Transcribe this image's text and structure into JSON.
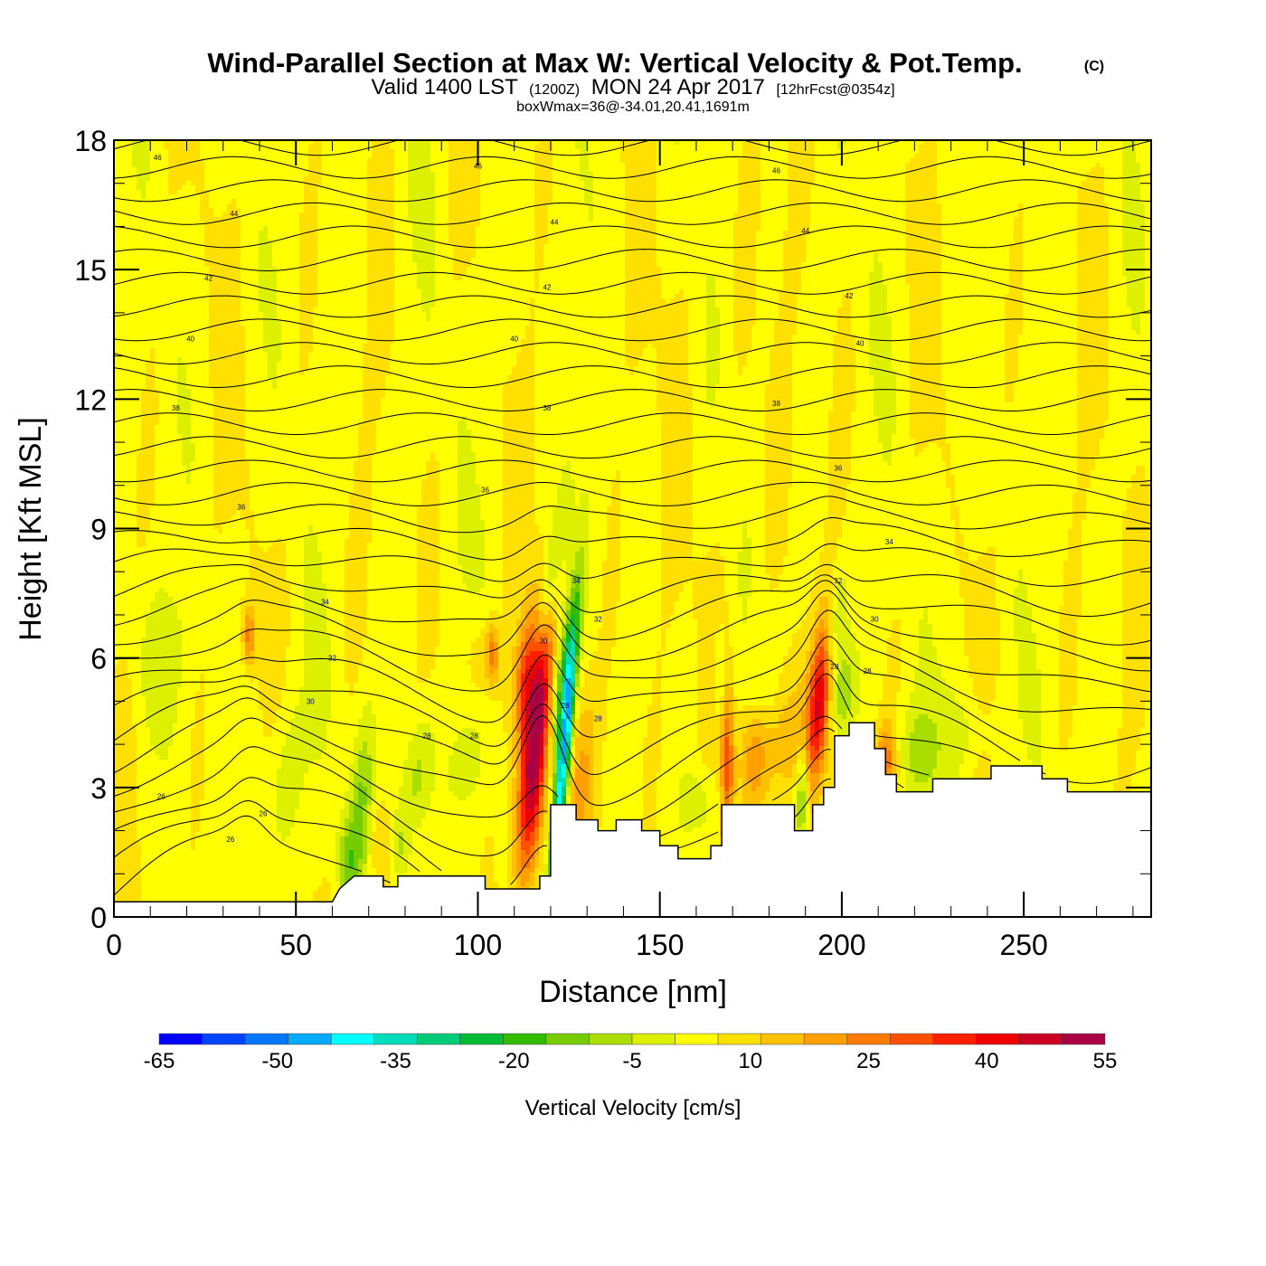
{
  "header": {
    "title": "Wind-Parallel Section at Max W: Vertical Velocity & Pot.Temp.",
    "copyright": "(C)",
    "valid_prefix": "Valid 1400 LST",
    "valid_z": "(1200Z)",
    "valid_date": "MON 24 Apr 2017",
    "forecast": "[12hrFcst@0354z]",
    "box_info": "boxWmax=36@-34.01,20.41,1691m"
  },
  "chart_data": {
    "type": "heatmap",
    "xlabel": "Distance [nm]",
    "ylabel": "Height [Kft MSL]",
    "xlim": [
      0,
      285
    ],
    "ylim": [
      0,
      18
    ],
    "x_ticks": [
      0,
      50,
      100,
      150,
      200,
      250
    ],
    "y_ticks": [
      0,
      3,
      6,
      9,
      12,
      15,
      18
    ],
    "colorbar": {
      "label": "Vertical Velocity [cm/s]",
      "range": [
        -65,
        55
      ],
      "tick_values": [
        -65,
        -50,
        -35,
        -20,
        -5,
        10,
        25,
        40,
        55
      ],
      "colors": [
        "#0000ff",
        "#0044ff",
        "#0077ff",
        "#00aaff",
        "#00ffff",
        "#00ddbb",
        "#00cc77",
        "#00bb33",
        "#33bb00",
        "#77cc00",
        "#aadd00",
        "#ddf000",
        "#ffff00",
        "#ffe000",
        "#ffc000",
        "#ffa000",
        "#ff7a00",
        "#ff5000",
        "#ff2000",
        "#ee0000",
        "#cc0022",
        "#aa0044"
      ]
    },
    "terrain": [
      [
        0,
        0.35
      ],
      [
        60,
        0.35
      ],
      [
        62,
        0.65
      ],
      [
        66,
        0.95
      ],
      [
        74,
        0.95
      ],
      [
        74,
        0.7
      ],
      [
        78,
        0.7
      ],
      [
        78,
        0.95
      ],
      [
        102,
        0.95
      ],
      [
        102,
        0.65
      ],
      [
        117,
        0.65
      ],
      [
        117,
        0.95
      ],
      [
        120,
        0.95
      ],
      [
        120,
        2.6
      ],
      [
        127,
        2.6
      ],
      [
        127,
        2.25
      ],
      [
        133,
        2.25
      ],
      [
        133,
        2.0
      ],
      [
        138,
        2.0
      ],
      [
        138,
        2.25
      ],
      [
        145,
        2.25
      ],
      [
        145,
        2.0
      ],
      [
        150,
        2.0
      ],
      [
        150,
        1.65
      ],
      [
        155,
        1.65
      ],
      [
        155,
        1.35
      ],
      [
        164,
        1.35
      ],
      [
        164,
        1.65
      ],
      [
        167,
        1.65
      ],
      [
        167,
        2.6
      ],
      [
        187,
        2.6
      ],
      [
        187,
        2.0
      ],
      [
        192,
        2.0
      ],
      [
        192,
        2.6
      ],
      [
        195,
        2.6
      ],
      [
        195,
        3.0
      ],
      [
        198,
        3.0
      ],
      [
        198,
        4.2
      ],
      [
        202,
        4.2
      ],
      [
        202,
        4.5
      ],
      [
        209,
        4.5
      ],
      [
        209,
        3.9
      ],
      [
        212,
        3.9
      ],
      [
        212,
        3.3
      ],
      [
        215,
        3.3
      ],
      [
        215,
        2.9
      ],
      [
        225,
        2.9
      ],
      [
        225,
        3.2
      ],
      [
        241,
        3.2
      ],
      [
        241,
        3.5
      ],
      [
        255,
        3.5
      ],
      [
        255,
        3.2
      ],
      [
        262,
        3.2
      ],
      [
        262,
        2.9
      ],
      [
        285,
        2.9
      ]
    ],
    "theta_levels": [
      {
        "y0": 2.2,
        "label": "26"
      },
      {
        "y0": 4.3,
        "label": "30"
      },
      {
        "y0": 6.1,
        "label": "32"
      },
      {
        "y0": 7.6,
        "label": "34"
      },
      {
        "y0": 9.7,
        "label": "36"
      },
      {
        "y0": 11.9,
        "label": "38"
      },
      {
        "y0": 13.5,
        "label": "40"
      },
      {
        "y0": 14.9,
        "label": "42"
      },
      {
        "y0": 16.3,
        "label": "44"
      },
      {
        "y0": 17.6,
        "label": "46"
      }
    ],
    "theta_label_text": [
      {
        "x": 12,
        "y": 17.6,
        "label": "46"
      },
      {
        "x": 100,
        "y": 17.4,
        "label": "46"
      },
      {
        "x": 182,
        "y": 17.3,
        "label": "46"
      },
      {
        "x": 33,
        "y": 16.3,
        "label": "44"
      },
      {
        "x": 121,
        "y": 16.1,
        "label": "44"
      },
      {
        "x": 190,
        "y": 15.9,
        "label": "44"
      },
      {
        "x": 26,
        "y": 14.8,
        "label": "42"
      },
      {
        "x": 119,
        "y": 14.6,
        "label": "42"
      },
      {
        "x": 202,
        "y": 14.4,
        "label": "42"
      },
      {
        "x": 21,
        "y": 13.4,
        "label": "40"
      },
      {
        "x": 110,
        "y": 13.4,
        "label": "40"
      },
      {
        "x": 205,
        "y": 13.3,
        "label": "40"
      },
      {
        "x": 17,
        "y": 11.8,
        "label": "38"
      },
      {
        "x": 119,
        "y": 11.8,
        "label": "38"
      },
      {
        "x": 182,
        "y": 11.9,
        "label": "38"
      },
      {
        "x": 35,
        "y": 9.5,
        "label": "36"
      },
      {
        "x": 102,
        "y": 9.9,
        "label": "36"
      },
      {
        "x": 199,
        "y": 10.4,
        "label": "36"
      },
      {
        "x": 58,
        "y": 7.3,
        "label": "34"
      },
      {
        "x": 127,
        "y": 7.8,
        "label": "34"
      },
      {
        "x": 213,
        "y": 8.7,
        "label": "34"
      },
      {
        "x": 60,
        "y": 6.0,
        "label": "32"
      },
      {
        "x": 133,
        "y": 6.9,
        "label": "32"
      },
      {
        "x": 199,
        "y": 7.8,
        "label": "32"
      },
      {
        "x": 54,
        "y": 5.0,
        "label": "30"
      },
      {
        "x": 118,
        "y": 6.4,
        "label": "30"
      },
      {
        "x": 209,
        "y": 6.9,
        "label": "30"
      },
      {
        "x": 86,
        "y": 4.2,
        "label": "28"
      },
      {
        "x": 99,
        "y": 4.2,
        "label": "28"
      },
      {
        "x": 124,
        "y": 4.9,
        "label": "28"
      },
      {
        "x": 133,
        "y": 4.6,
        "label": "28"
      },
      {
        "x": 198,
        "y": 5.8,
        "label": "28"
      },
      {
        "x": 207,
        "y": 5.7,
        "label": "28"
      },
      {
        "x": 13,
        "y": 2.8,
        "label": "26"
      },
      {
        "x": 41,
        "y": 2.4,
        "label": "26"
      },
      {
        "x": 32,
        "y": 1.8,
        "label": "26"
      }
    ],
    "w_features": [
      {
        "x": 115.5,
        "y": 3.9,
        "sx": 2.6,
        "sy": 2.1,
        "tilt": 0.42,
        "w": 55
      },
      {
        "x": 113,
        "y": 5.6,
        "sx": 2.2,
        "sy": 1.0,
        "tilt": 0.5,
        "w": 22
      },
      {
        "x": 123.5,
        "y": 3.6,
        "sx": 1.3,
        "sy": 2.4,
        "tilt": 0.45,
        "w": -50
      },
      {
        "x": 123,
        "y": 5.3,
        "sx": 1.8,
        "sy": 1.3,
        "tilt": 0.6,
        "w": -22
      },
      {
        "x": 119,
        "y": 7.5,
        "sx": 1.7,
        "sy": 1.3,
        "tilt": 0.9,
        "w": -15
      },
      {
        "x": 128.5,
        "y": 3.3,
        "sx": 2.8,
        "sy": 1.6,
        "tilt": 0.3,
        "w": 14
      },
      {
        "x": 101,
        "y": 6.0,
        "sx": 3.5,
        "sy": 0.8,
        "tilt": 0,
        "w": 8
      },
      {
        "x": 194,
        "y": 5.2,
        "sx": 2.0,
        "sy": 1.2,
        "tilt": 0.4,
        "w": 38
      },
      {
        "x": 185,
        "y": 4.0,
        "sx": 5.0,
        "sy": 1.2,
        "tilt": 0.3,
        "w": 14
      },
      {
        "x": 197,
        "y": 6.5,
        "sx": 2.0,
        "sy": 1.0,
        "tilt": 0.8,
        "w": -12
      },
      {
        "x": 200,
        "y": 5.2,
        "sx": 2.5,
        "sy": 0.8,
        "tilt": 0.3,
        "w": -12
      },
      {
        "x": 189,
        "y": 2.8,
        "sx": 1.2,
        "sy": 0.8,
        "tilt": 0,
        "w": -20
      },
      {
        "x": 168.5,
        "y": 3.6,
        "sx": 1.2,
        "sy": 1.5,
        "tilt": 0,
        "w": 25
      },
      {
        "x": 167,
        "y": 5.5,
        "sx": 1.5,
        "sy": 0.8,
        "tilt": 0,
        "w": -10
      },
      {
        "x": 178,
        "y": 5.3,
        "sx": 3.0,
        "sy": 0.6,
        "tilt": 0,
        "w": -6
      },
      {
        "x": 161,
        "y": 2.6,
        "sx": 3.5,
        "sy": 0.6,
        "tilt": 0,
        "w": -9
      },
      {
        "x": 212,
        "y": 3.6,
        "sx": 2.0,
        "sy": 0.6,
        "tilt": 0,
        "w": 20
      },
      {
        "x": 221,
        "y": 3.8,
        "sx": 4.0,
        "sy": 0.8,
        "tilt": 0,
        "w": -10
      },
      {
        "x": 236,
        "y": 4.3,
        "sx": 6.0,
        "sy": 0.7,
        "tilt": 0,
        "w": -6
      },
      {
        "x": 68,
        "y": 2.6,
        "sx": 2.2,
        "sy": 1.5,
        "tilt": 0.35,
        "w": -14
      },
      {
        "x": 64,
        "y": 1.3,
        "sx": 1.8,
        "sy": 0.7,
        "tilt": 0,
        "w": -13
      },
      {
        "x": 83,
        "y": 3.2,
        "sx": 2.8,
        "sy": 1.1,
        "tilt": 0.6,
        "w": -13
      },
      {
        "x": 79,
        "y": 1.5,
        "sx": 1.8,
        "sy": 0.7,
        "tilt": 0,
        "w": -10
      },
      {
        "x": 47,
        "y": 3.2,
        "sx": 4.0,
        "sy": 1.4,
        "tilt": 0.2,
        "w": -9
      },
      {
        "x": 96,
        "y": 3.5,
        "sx": 3.5,
        "sy": 0.7,
        "tilt": 0.3,
        "w": -6
      },
      {
        "x": 12,
        "y": 6.0,
        "sx": 5.0,
        "sy": 1.2,
        "tilt": 0,
        "w": -6
      },
      {
        "x": 73,
        "y": 1.6,
        "sx": 2.0,
        "sy": 0.7,
        "tilt": 0,
        "w": 9
      },
      {
        "x": 37,
        "y": 6.5,
        "sx": 1.2,
        "sy": 0.5,
        "tilt": 0,
        "w": 20
      },
      {
        "x": 104,
        "y": 6.1,
        "sx": 1.2,
        "sy": 0.5,
        "tilt": 0,
        "w": 18
      },
      {
        "x": 176,
        "y": 3.7,
        "sx": 3.0,
        "sy": 0.9,
        "tilt": 0,
        "w": 12
      }
    ],
    "positive_w_streak_centers_x": [
      5,
      25,
      45,
      65,
      85,
      108,
      135,
      150,
      165,
      178,
      195,
      215,
      240,
      262,
      280
    ]
  }
}
